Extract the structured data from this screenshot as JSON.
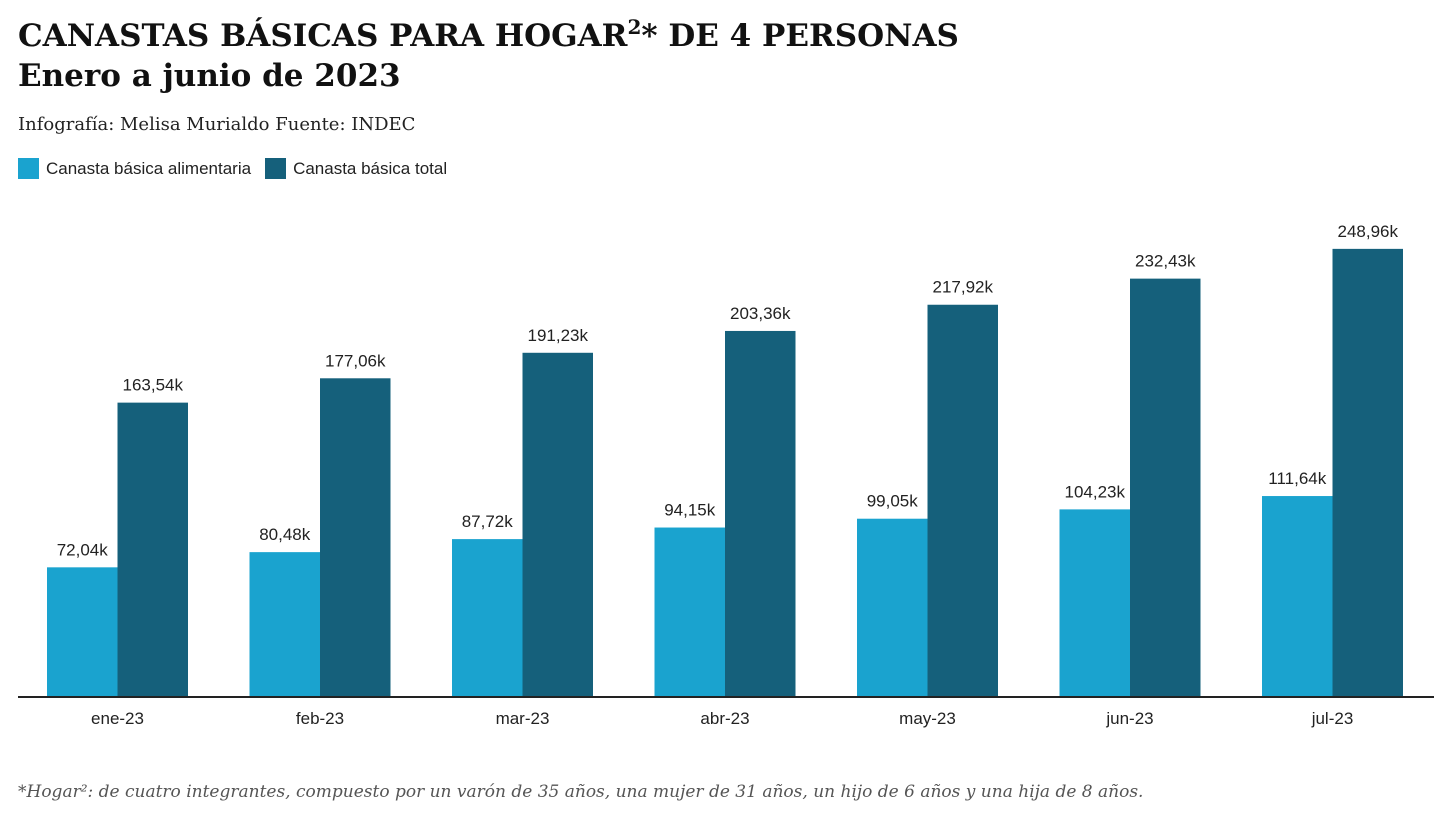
{
  "header": {
    "title_line1": "CANASTAS BÁSICAS PARA HOGAR",
    "title_sup": "2",
    "title_line1_rest": "* DE 4 PERSONAS",
    "title_line2": "Enero a junio de 2023",
    "credit": "Infografía: Melisa Murialdo Fuente: INDEC"
  },
  "footnote": "*Hogar²: de cuatro integrantes, compuesto por un varón de 35 años, una mujer de 31 años, un hijo de 6 años y una hija de 8 años.",
  "chart_data": {
    "type": "bar",
    "title": "CANASTAS BÁSICAS PARA HOGAR²* DE 4 PERSONAS",
    "subtitle": "Enero a junio de 2023",
    "xlabel": "",
    "ylabel": "",
    "ylim": [
      0,
      270
    ],
    "grid": false,
    "legend_position": "top-left",
    "categories": [
      "ene-23",
      "feb-23",
      "mar-23",
      "abr-23",
      "may-23",
      "jun-23",
      "jul-23"
    ],
    "series": [
      {
        "name": "Canasta básica alimentaria",
        "color": "#1aa3cf",
        "values": [
          72.04,
          80.48,
          87.72,
          94.15,
          99.05,
          104.23,
          111.64
        ],
        "labels": [
          "72,04k",
          "80,48k",
          "87,72k",
          "94,15k",
          "99,05k",
          "104,23k",
          "111,64k"
        ]
      },
      {
        "name": "Canasta básica total",
        "color": "#15607b",
        "values": [
          163.54,
          177.06,
          191.23,
          203.36,
          217.92,
          232.43,
          248.96
        ],
        "labels": [
          "163,54k",
          "177,06k",
          "191,23k",
          "203,36k",
          "217,92k",
          "232,43k",
          "248,96k"
        ]
      }
    ]
  }
}
